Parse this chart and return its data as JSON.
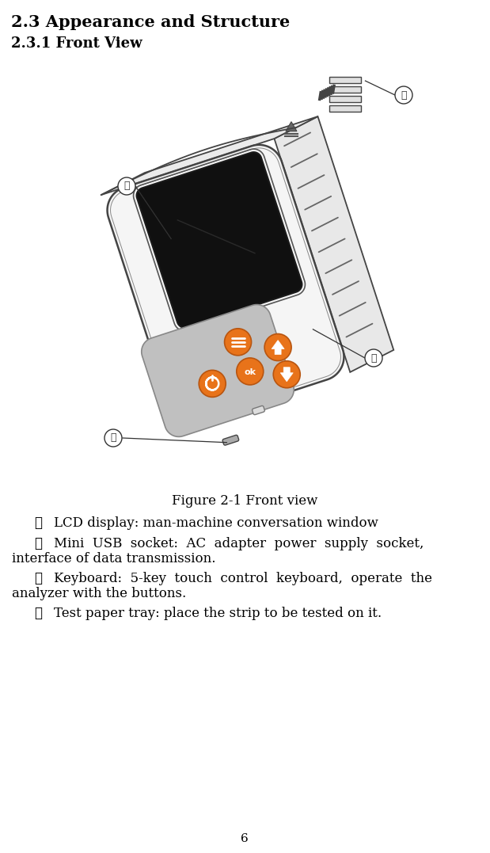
{
  "title1": "2.3 Appearance and Structure",
  "title2": "2.3.1 Front View",
  "figure_caption": "Figure 2-1 Front view",
  "items": [
    {
      "num": "①",
      "text": "LCD display: man-machine conversation window"
    },
    {
      "num": "②",
      "text": "Mini USB socket: AC adapter power supply socket, interface of data transmission."
    },
    {
      "num": "③",
      "text": "Keyboard: 5-key touch control keyboard, operate the analyzer with the buttons."
    },
    {
      "num": "④",
      "text": "Test paper tray: place the strip to be tested on it."
    }
  ],
  "page_number": "6",
  "bg_color": "#ffffff",
  "text_color": "#000000",
  "orange_color": "#e8731a",
  "device_face": "#f5f5f5",
  "device_side": "#e0e0e0",
  "device_outline": "#444444",
  "screen_color": "#101010",
  "btn_panel": "#c0c0c0"
}
